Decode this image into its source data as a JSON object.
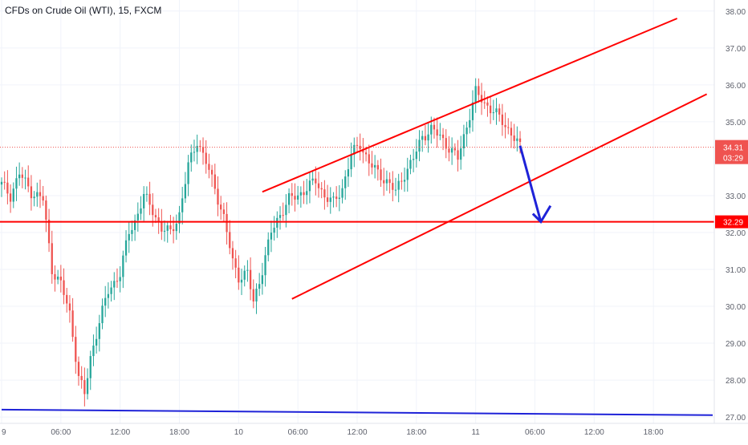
{
  "header": {
    "symbol_title": "CFDs on Crude Oil (WTI), 15, FXCM"
  },
  "colors": {
    "up": "#26a69a",
    "down": "#ef5350",
    "channel": "#ff0000",
    "support": "#ff0000",
    "arrow": "#1e22d8",
    "trendline_bottom": "#1e22d8",
    "grid": "#f0f3fa",
    "axis_text": "#5d606b",
    "last_price_badge": "#ef5350",
    "level_badge": "#ff0000"
  },
  "price_axis": {
    "ticks": [
      "38.00",
      "37.00",
      "36.00",
      "35.00",
      "33.00",
      "32.00",
      "31.00",
      "30.00",
      "29.00",
      "28.00",
      "27.00"
    ],
    "last_price": "34.31",
    "countdown": "03:29",
    "support_level": "32.29"
  },
  "time_axis": {
    "ticks": [
      "9",
      "06:00",
      "12:00",
      "18:00",
      "10",
      "06:00",
      "12:00",
      "18:00",
      "11",
      "06:00",
      "12:00",
      "18:00"
    ]
  },
  "chart_data": {
    "type": "candlestick",
    "title": "CFDs on Crude Oil (WTI), 15, FXCM",
    "ylim": [
      26.85,
      38.3
    ],
    "x_ticks": [
      "9",
      "06:00",
      "12:00",
      "18:00",
      "10",
      "06:00",
      "12:00",
      "18:00",
      "11",
      "06:00",
      "12:00",
      "18:00"
    ],
    "bar_close_path": [
      [
        0,
        33.3
      ],
      [
        3,
        33.0
      ],
      [
        6,
        33.6
      ],
      [
        10,
        33.1
      ],
      [
        14,
        32.9
      ],
      [
        17,
        31.0
      ],
      [
        20,
        30.6
      ],
      [
        23,
        29.8
      ],
      [
        26,
        28.1
      ],
      [
        28,
        27.6
      ],
      [
        30,
        28.6
      ],
      [
        33,
        29.6
      ],
      [
        36,
        30.4
      ],
      [
        40,
        30.9
      ],
      [
        43,
        32.0
      ],
      [
        45,
        32.3
      ],
      [
        48,
        33.0
      ],
      [
        51,
        32.6
      ],
      [
        54,
        32.1
      ],
      [
        57,
        32.0
      ],
      [
        60,
        32.5
      ],
      [
        63,
        33.8
      ],
      [
        66,
        34.5
      ],
      [
        69,
        33.9
      ],
      [
        72,
        33.2
      ],
      [
        75,
        32.4
      ],
      [
        78,
        31.2
      ],
      [
        80,
        30.8
      ],
      [
        83,
        30.9
      ],
      [
        85,
        30.1
      ],
      [
        88,
        31.0
      ],
      [
        91,
        32.0
      ],
      [
        94,
        32.5
      ],
      [
        97,
        32.9
      ],
      [
        100,
        33.0
      ],
      [
        103,
        33.2
      ],
      [
        106,
        33.4
      ],
      [
        109,
        33.0
      ],
      [
        112,
        32.8
      ],
      [
        115,
        33.2
      ],
      [
        118,
        34.1
      ],
      [
        121,
        34.4
      ],
      [
        124,
        33.9
      ],
      [
        127,
        33.6
      ],
      [
        130,
        33.4
      ],
      [
        133,
        33.1
      ],
      [
        136,
        33.6
      ],
      [
        139,
        34.0
      ],
      [
        142,
        34.6
      ],
      [
        145,
        34.8
      ],
      [
        148,
        34.6
      ],
      [
        151,
        34.3
      ],
      [
        154,
        34.0
      ],
      [
        157,
        34.9
      ],
      [
        160,
        35.8
      ],
      [
        163,
        35.5
      ],
      [
        166,
        35.3
      ],
      [
        169,
        35.0
      ],
      [
        172,
        34.7
      ],
      [
        175,
        34.3
      ]
    ],
    "channel": {
      "upper": [
        [
          88,
          33.1
        ],
        [
          228,
          37.8
        ]
      ],
      "lower": [
        [
          98,
          30.2
        ],
        [
          238,
          35.75
        ]
      ]
    },
    "support_level": 32.29,
    "projection_arrow": {
      "from": [
        175,
        34.35
      ],
      "to": [
        182,
        32.29
      ]
    },
    "bottom_trendline": [
      [
        0,
        27.2
      ],
      [
        240,
        27.05
      ]
    ],
    "last_price": 34.31
  }
}
